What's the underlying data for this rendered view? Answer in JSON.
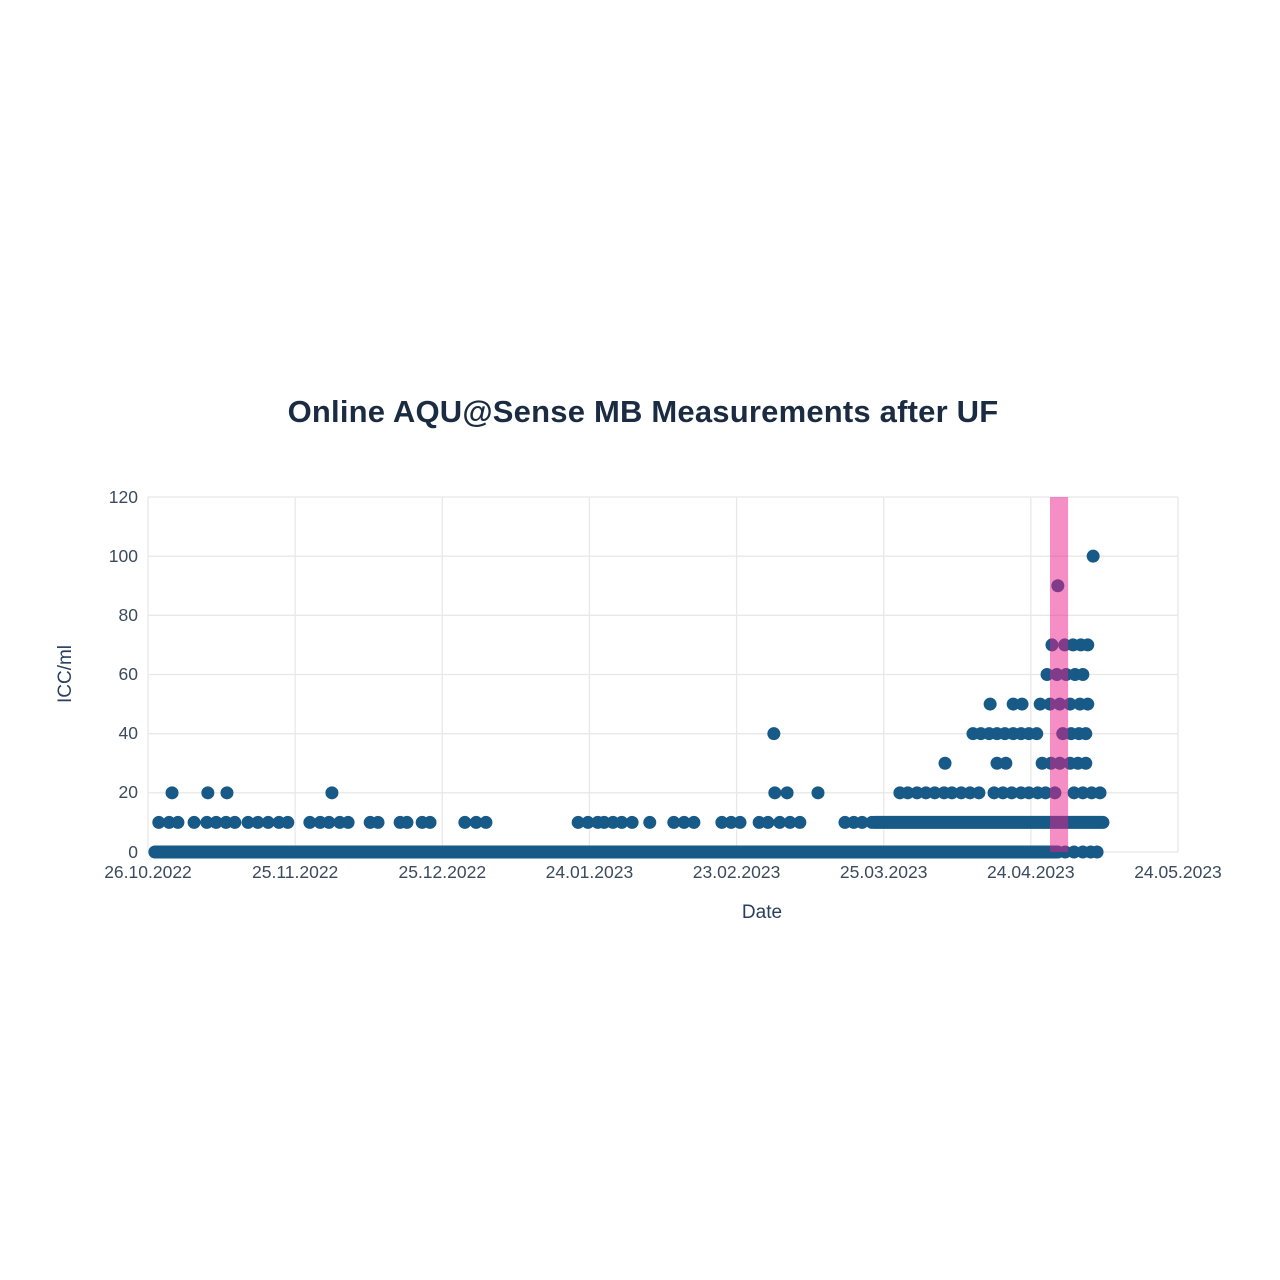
{
  "title": "Online AQU@Sense MB Measurements after UF",
  "x_axis": {
    "title": "Date",
    "ticks": [
      {
        "label": "26.10.2022",
        "day": 0
      },
      {
        "label": "25.11.2022",
        "day": 30
      },
      {
        "label": "25.12.2022",
        "day": 60
      },
      {
        "label": "24.01.2023",
        "day": 90
      },
      {
        "label": "23.02.2023",
        "day": 120
      },
      {
        "label": "25.03.2023",
        "day": 150
      },
      {
        "label": "24.04.2023",
        "day": 180
      },
      {
        "label": "24.05.2023",
        "day": 210
      }
    ]
  },
  "y_axis": {
    "title": "ICC/ml",
    "ticks": [
      0,
      20,
      40,
      60,
      80,
      100,
      120
    ]
  },
  "colors": {
    "marker": "#175987",
    "band": "rgba(233,30,140,0.5)",
    "grid": "#e8e8e8",
    "plot_background": "#ffffff",
    "tick_text": "#3b4a5c",
    "title_text": "#1b2c42"
  },
  "chart_data": {
    "type": "scatter",
    "title": "Online AQU@Sense MB Measurements after UF",
    "xlabel": "Date",
    "ylabel": "ICC/ml",
    "ylim": [
      0,
      120
    ],
    "y_gridlines": [
      0,
      20,
      40,
      60,
      80,
      100,
      120
    ],
    "x_unit": "days_after_26.10.2022",
    "x_range_days": [
      0,
      210
    ],
    "x_tick_spacing_days": 30,
    "grid": "on",
    "legend": "none",
    "marker_size_px": 13,
    "highlight_band": {
      "from_day": 183.9,
      "to_day": 187.6,
      "approx_dates": "28.04.2023 - 02.05.2023"
    },
    "dense_runs": [
      {
        "icc_per_ml": 0,
        "from_day": 1.4,
        "to_day": 185.5
      },
      {
        "icc_per_ml": 10,
        "from_day": 148.2,
        "to_day": 194.7
      }
    ],
    "points_by_icc": {
      "0": [
        187.0,
        188.8,
        190.6,
        192.2,
        193.5
      ],
      "10": [
        2.2,
        4.3,
        6.1,
        9.4,
        12.0,
        13.9,
        15.9,
        17.7,
        20.4,
        22.4,
        24.5,
        26.7,
        28.5,
        33.0,
        35.1,
        36.9,
        39.1,
        40.8,
        45.3,
        46.9,
        51.4,
        52.8,
        55.9,
        57.5,
        64.6,
        66.9,
        68.9,
        87.7,
        89.7,
        91.7,
        93.0,
        94.8,
        96.6,
        98.7,
        102.3,
        107.2,
        109.3,
        111.3,
        117.0,
        118.9,
        120.7,
        124.6,
        126.4,
        128.8,
        130.9,
        132.9,
        142.1,
        143.9,
        145.6,
        147.6
      ],
      "20": [
        4.9,
        12.2,
        16.1,
        37.5,
        127.8,
        130.3,
        136.6,
        153.3,
        154.9,
        156.8,
        158.6,
        160.4,
        162.3,
        163.9,
        165.8,
        167.6,
        169.4,
        172.5,
        174.3,
        176.1,
        178.0,
        179.6,
        181.4,
        183.0,
        184.9,
        188.8,
        190.6,
        192.4,
        194.1
      ],
      "30": [
        162.5,
        173.1,
        174.9,
        182.3,
        184.1,
        185.9,
        188.0,
        189.6,
        191.2
      ],
      "40": [
        127.6,
        168.2,
        169.8,
        171.5,
        173.1,
        174.7,
        176.4,
        178.0,
        179.6,
        181.2,
        186.5,
        188.2,
        189.8,
        191.2
      ],
      "50": [
        171.7,
        176.4,
        178.2,
        181.9,
        183.9,
        185.9,
        188.0,
        190.0,
        191.6
      ],
      "60": [
        183.3,
        185.3,
        187.2,
        189.0,
        190.6
      ],
      "70": [
        184.3,
        186.9,
        188.6,
        190.2,
        191.6
      ],
      "90": [
        185.5
      ],
      "100": [
        192.7
      ]
    }
  }
}
